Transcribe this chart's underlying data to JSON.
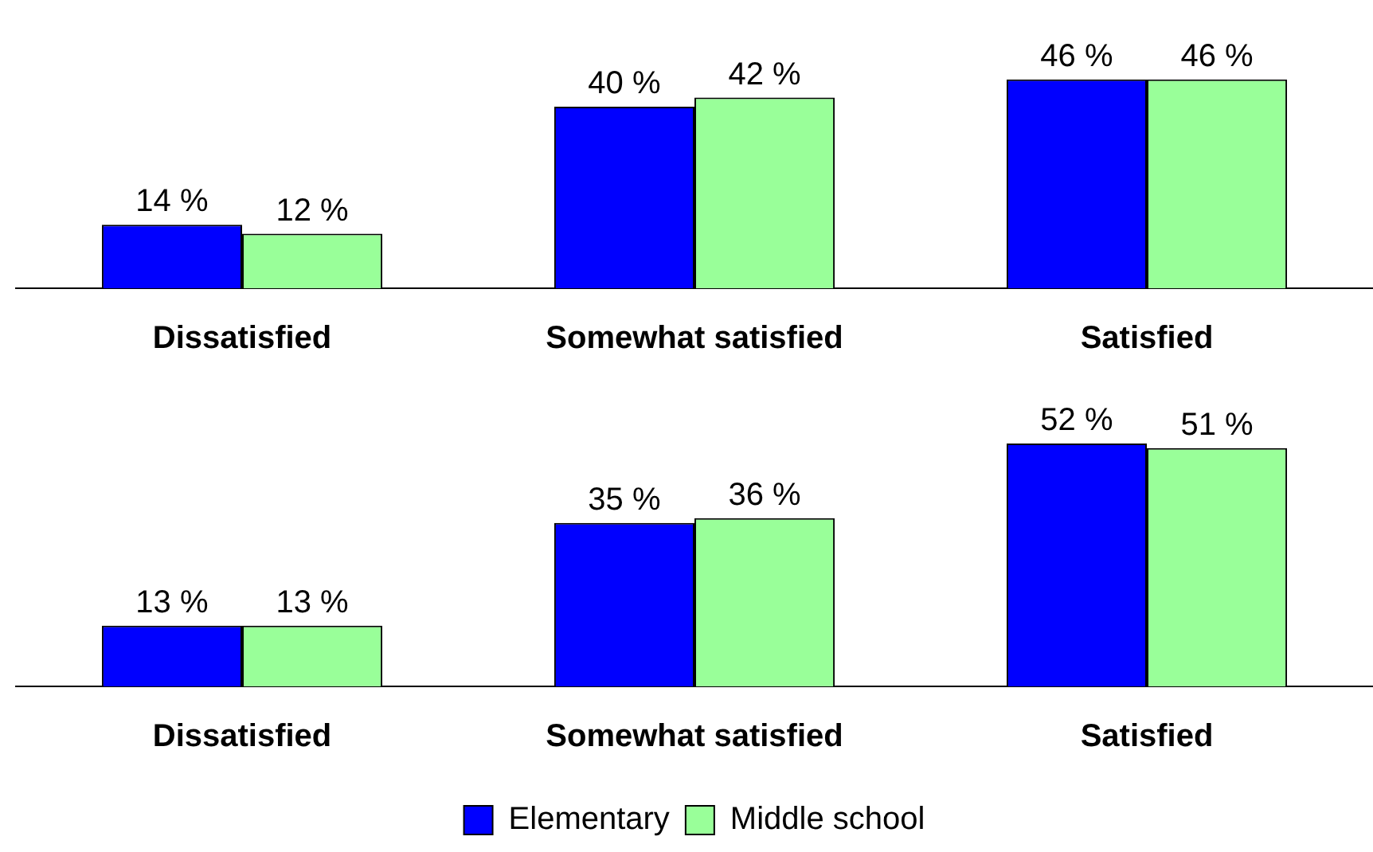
{
  "chart_data": [
    {
      "type": "bar",
      "categories": [
        "Dissatisfied",
        "Somewhat satisfied",
        "Satisfied"
      ],
      "series": [
        {
          "color": "#0000ff",
          "values": [
            14,
            40,
            46
          ],
          "value_labels": [
            "14 %",
            "40 %",
            "46 %"
          ]
        },
        {
          "color": "#99ff99",
          "values": [
            12,
            42,
            46
          ],
          "value_labels": [
            "12 %",
            "42 %",
            "46 %"
          ]
        }
      ],
      "legend": false,
      "grid": false
    },
    {
      "type": "bar",
      "categories": [
        "Dissatisfied",
        "Somewhat satisfied",
        "Satisfied"
      ],
      "series": [
        {
          "name": "Elementary",
          "color": "#0000ff",
          "values": [
            13,
            35,
            52
          ],
          "value_labels": [
            "13 %",
            "35 %",
            "52 %"
          ]
        },
        {
          "name": "Middle school",
          "color": "#99ff99",
          "values": [
            13,
            36,
            51
          ],
          "value_labels": [
            "13 %",
            "36 %",
            "51 %"
          ]
        }
      ],
      "legend": "bottom",
      "grid": false
    }
  ]
}
